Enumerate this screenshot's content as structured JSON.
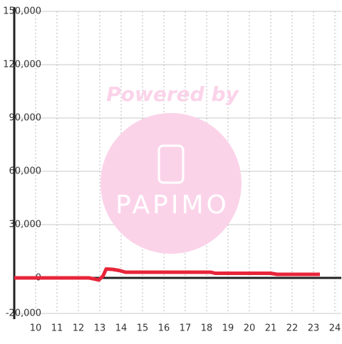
{
  "chart_data": {
    "type": "line",
    "watermark": "Powered by",
    "watermark_logo": "PAPIMO",
    "x": [
      9,
      12.5,
      12.7,
      12.95,
      13.15,
      13.3,
      13.6,
      13.9,
      14.2,
      16,
      18.2,
      18.4,
      21,
      21.3,
      23.3
    ],
    "series": [
      {
        "color": "#e8253a",
        "values": [
          0,
          0,
          -500,
          -1200,
          1000,
          5000,
          4800,
          4200,
          3200,
          3200,
          3200,
          2600,
          2600,
          2000,
          2000
        ]
      }
    ],
    "xlim": [
      9,
      24.3
    ],
    "xticks": [
      10,
      11,
      12,
      13,
      14,
      15,
      16,
      17,
      18,
      19,
      20,
      21,
      22,
      23,
      24
    ],
    "ylim": [
      -20000,
      150000
    ],
    "yticks": [
      {
        "value": -20000,
        "label": "-20,000"
      },
      0,
      {
        "value": 30000,
        "label": "30,000"
      },
      {
        "value": 60000,
        "label": "60,000"
      },
      {
        "value": 90000,
        "label": "90,000"
      },
      {
        "value": 120000,
        "label": "120,000"
      },
      {
        "value": 150000,
        "label": "150,000"
      }
    ],
    "grid": true
  }
}
